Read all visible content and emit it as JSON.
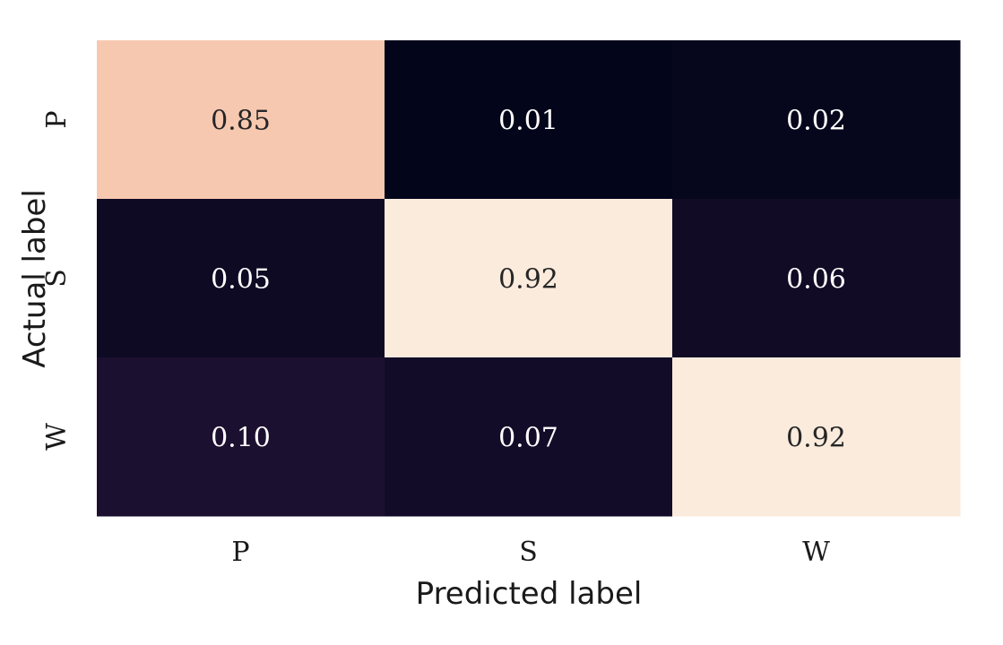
{
  "chart_data": {
    "type": "heatmap",
    "title": "",
    "xlabel": "Predicted label",
    "ylabel": "Actual label",
    "x_categories": [
      "P",
      "S",
      "W"
    ],
    "y_categories": [
      "P",
      "S",
      "W"
    ],
    "values": [
      [
        0.85,
        0.01,
        0.02
      ],
      [
        0.05,
        0.92,
        0.06
      ],
      [
        0.1,
        0.07,
        0.92
      ]
    ],
    "value_labels": [
      [
        "0.85",
        "0.01",
        "0.02"
      ],
      [
        "0.05",
        "0.92",
        "0.06"
      ],
      [
        "0.10",
        "0.07",
        "0.92"
      ]
    ],
    "colormap": "rocket",
    "colorbar": false
  }
}
